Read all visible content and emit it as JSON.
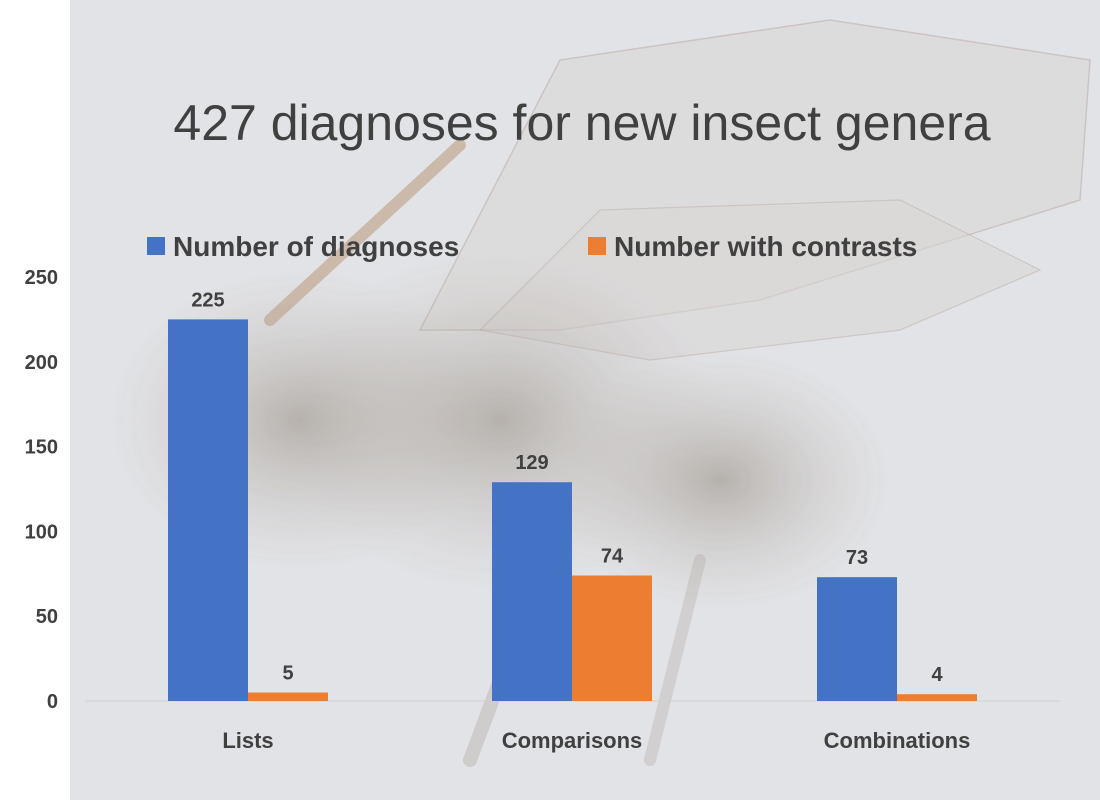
{
  "colors": {
    "background": "#e2e3e6",
    "series_1": "#4472c4",
    "series_2": "#ed7d31",
    "text": "#404040"
  },
  "chart_data": {
    "type": "bar",
    "title": "427 diagnoses for new insect genera",
    "categories": [
      "Lists",
      "Comparisons",
      "Combinations"
    ],
    "series": [
      {
        "name": "Number of diagnoses",
        "values": [
          225,
          129,
          73
        ]
      },
      {
        "name": "Number with contrasts",
        "values": [
          5,
          74,
          4
        ]
      }
    ],
    "ylim": [
      0,
      250
    ],
    "yticks": [
      0,
      50,
      100,
      150,
      200,
      250
    ],
    "data_labels": true,
    "grid": false,
    "legend_position": "top"
  }
}
